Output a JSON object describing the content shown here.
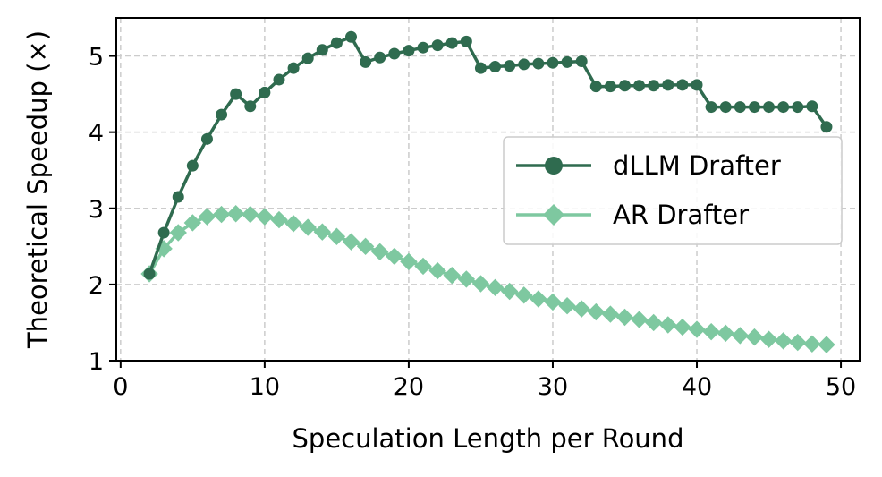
{
  "chart_data": {
    "type": "line",
    "title": "",
    "xlabel": "Speculation Length per Round",
    "ylabel": "Theoretical Speedup (×)",
    "xlim": [
      -0.3,
      51.3
    ],
    "ylim": [
      1.0,
      5.5
    ],
    "xticks": [
      0,
      10,
      20,
      30,
      40,
      50
    ],
    "yticks": [
      1,
      2,
      3,
      4,
      5
    ],
    "grid": true,
    "legend_position": "center-right",
    "x": [
      2,
      3,
      4,
      5,
      6,
      7,
      8,
      9,
      10,
      11,
      12,
      13,
      14,
      15,
      16,
      17,
      18,
      19,
      20,
      21,
      22,
      23,
      24,
      25,
      26,
      27,
      28,
      29,
      30,
      31,
      32,
      33,
      34,
      35,
      36,
      37,
      38,
      39,
      40,
      41,
      42,
      43,
      44,
      45,
      46,
      47,
      48,
      49
    ],
    "series": [
      {
        "name": "dLLM Drafter",
        "color": "#2f6b4f",
        "marker": "circle",
        "values": [
          2.14,
          2.68,
          3.15,
          3.56,
          3.91,
          4.23,
          4.5,
          4.34,
          4.52,
          4.69,
          4.84,
          4.97,
          5.08,
          5.17,
          5.25,
          4.92,
          4.98,
          5.03,
          5.07,
          5.11,
          5.14,
          5.17,
          5.19,
          4.84,
          4.86,
          4.87,
          4.89,
          4.9,
          4.91,
          4.92,
          4.93,
          4.6,
          4.6,
          4.61,
          4.61,
          4.61,
          4.62,
          4.62,
          4.62,
          4.33,
          4.33,
          4.33,
          4.33,
          4.33,
          4.33,
          4.33,
          4.34,
          4.07
        ]
      },
      {
        "name": "AR Drafter",
        "color": "#7ec8a0",
        "marker": "diamond",
        "values": [
          2.14,
          2.47,
          2.68,
          2.81,
          2.89,
          2.92,
          2.93,
          2.92,
          2.89,
          2.85,
          2.8,
          2.75,
          2.69,
          2.63,
          2.56,
          2.5,
          2.43,
          2.37,
          2.3,
          2.24,
          2.18,
          2.12,
          2.07,
          2.01,
          1.96,
          1.91,
          1.86,
          1.81,
          1.77,
          1.72,
          1.68,
          1.64,
          1.61,
          1.57,
          1.54,
          1.5,
          1.47,
          1.44,
          1.41,
          1.38,
          1.36,
          1.33,
          1.31,
          1.28,
          1.26,
          1.24,
          1.22,
          1.21
        ]
      }
    ]
  }
}
